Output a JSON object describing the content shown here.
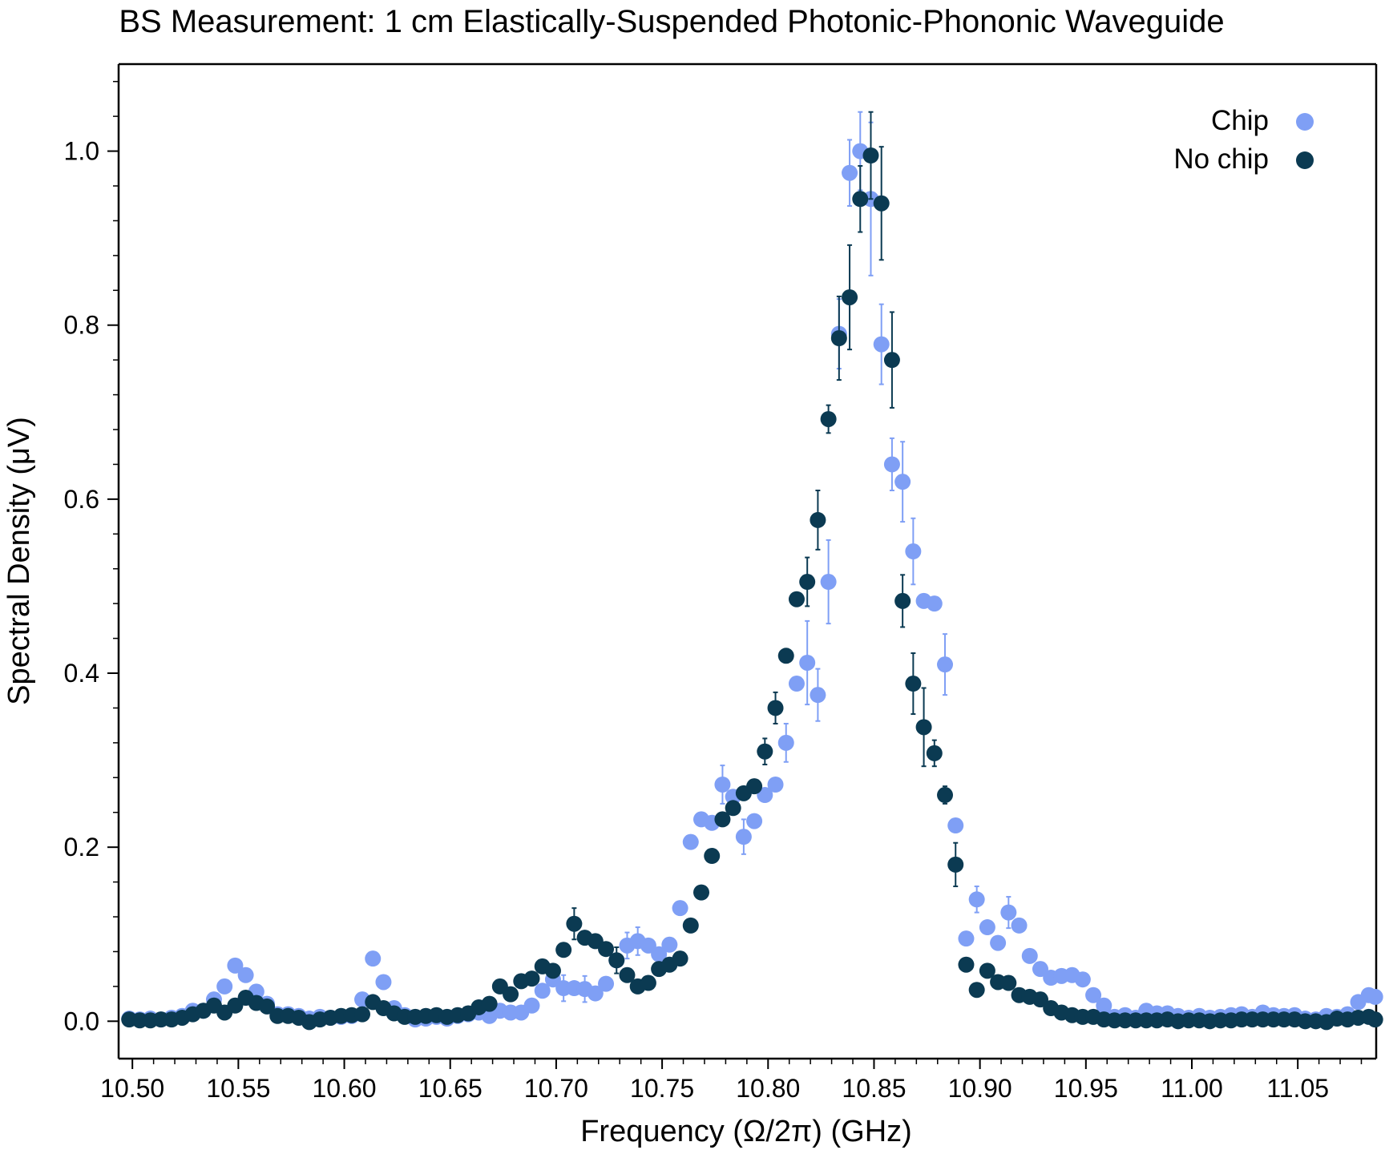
{
  "chart_data": {
    "type": "scatter",
    "title": "BS Measurement: 1 cm Elastically-Suspended Photonic-Phononic Waveguide",
    "xlabel": "Frequency (Ω/2π) (GHz)",
    "ylabel": "Spectral Density (μV)",
    "xlim": [
      10.4935,
      11.087
    ],
    "ylim": [
      -0.043,
      1.1
    ],
    "xticks": [
      10.5,
      10.55,
      10.6,
      10.65,
      10.7,
      10.75,
      10.8,
      10.85,
      10.9,
      10.95,
      11.0,
      11.05
    ],
    "xtick_labels": [
      "10.50",
      "10.55",
      "10.60",
      "10.65",
      "10.70",
      "10.75",
      "10.80",
      "10.85",
      "10.90",
      "10.95",
      "11.00",
      "11.05"
    ],
    "yticks": [
      0.0,
      0.2,
      0.4,
      0.6,
      0.8,
      1.0
    ],
    "ytick_labels": [
      "0.0",
      "0.2",
      "0.4",
      "0.6",
      "0.8",
      "1.0"
    ],
    "grid": false,
    "legend": "top-right",
    "series": [
      {
        "name": "Chip",
        "color": "#7f9ff5",
        "points": [
          [
            10.4985,
            0.003
          ],
          [
            10.5035,
            0.002
          ],
          [
            10.5085,
            0.003
          ],
          [
            10.5135,
            0.002
          ],
          [
            10.5185,
            0.004
          ],
          [
            10.5235,
            0.006
          ],
          [
            10.5285,
            0.012
          ],
          [
            10.5335,
            0.012
          ],
          [
            10.5385,
            0.025
          ],
          [
            10.5435,
            0.04
          ],
          [
            10.5485,
            0.064
          ],
          [
            10.5535,
            0.053
          ],
          [
            10.5585,
            0.034
          ],
          [
            10.5635,
            0.02
          ],
          [
            10.5685,
            0.008
          ],
          [
            10.5735,
            0.008
          ],
          [
            10.5785,
            0.006
          ],
          [
            10.5835,
            0.003
          ],
          [
            10.5885,
            0.005
          ],
          [
            10.5935,
            0.004
          ],
          [
            10.5985,
            0.005
          ],
          [
            10.6035,
            0.006
          ],
          [
            10.6085,
            0.025
          ],
          [
            10.6135,
            0.072
          ],
          [
            10.6185,
            0.045
          ],
          [
            10.6235,
            0.015
          ],
          [
            10.6285,
            0.007
          ],
          [
            10.6335,
            0.002
          ],
          [
            10.6385,
            0.003
          ],
          [
            10.6435,
            0.005
          ],
          [
            10.6485,
            0.003
          ],
          [
            10.6535,
            0.006
          ],
          [
            10.6585,
            0.008
          ],
          [
            10.6635,
            0.01
          ],
          [
            10.6685,
            0.006
          ],
          [
            10.6735,
            0.012
          ],
          [
            10.6785,
            0.01
          ],
          [
            10.6835,
            0.01
          ],
          [
            10.6885,
            0.018
          ],
          [
            10.6935,
            0.035
          ],
          [
            10.6985,
            0.048
          ],
          [
            10.7035,
            0.038
          ],
          [
            10.7085,
            0.038
          ],
          [
            10.7135,
            0.037
          ],
          [
            10.7185,
            0.032
          ],
          [
            10.7235,
            0.043
          ],
          [
            10.7285,
            0.07
          ],
          [
            10.7335,
            0.087
          ],
          [
            10.7385,
            0.092
          ],
          [
            10.7435,
            0.087
          ],
          [
            10.7485,
            0.077
          ],
          [
            10.7535,
            0.088
          ],
          [
            10.7585,
            0.13
          ],
          [
            10.7635,
            0.206
          ],
          [
            10.7685,
            0.232
          ],
          [
            10.7735,
            0.228
          ],
          [
            10.7785,
            0.272
          ],
          [
            10.7835,
            0.258
          ],
          [
            10.7885,
            0.212
          ],
          [
            10.7935,
            0.23
          ],
          [
            10.7985,
            0.26
          ],
          [
            10.8035,
            0.272
          ],
          [
            10.8085,
            0.32
          ],
          [
            10.8135,
            0.388
          ],
          [
            10.8185,
            0.412
          ],
          [
            10.8235,
            0.375
          ],
          [
            10.8285,
            0.505
          ],
          [
            10.8335,
            0.79
          ],
          [
            10.8385,
            0.975
          ],
          [
            10.8435,
            1.0
          ],
          [
            10.8485,
            0.945
          ],
          [
            10.8535,
            0.778
          ],
          [
            10.8585,
            0.64
          ],
          [
            10.8635,
            0.62
          ],
          [
            10.8685,
            0.54
          ],
          [
            10.8735,
            0.483
          ],
          [
            10.8785,
            0.48
          ],
          [
            10.8835,
            0.41
          ],
          [
            10.8885,
            0.225
          ],
          [
            10.8935,
            0.095
          ],
          [
            10.8985,
            0.14
          ],
          [
            10.9035,
            0.108
          ],
          [
            10.9085,
            0.09
          ],
          [
            10.9135,
            0.125
          ],
          [
            10.9185,
            0.11
          ],
          [
            10.9235,
            0.075
          ],
          [
            10.9285,
            0.06
          ],
          [
            10.9335,
            0.05
          ],
          [
            10.9385,
            0.052
          ],
          [
            10.9435,
            0.053
          ],
          [
            10.9485,
            0.048
          ],
          [
            10.9535,
            0.03
          ],
          [
            10.9585,
            0.018
          ],
          [
            10.9635,
            0.005
          ],
          [
            10.9685,
            0.007
          ],
          [
            10.9735,
            0.004
          ],
          [
            10.9785,
            0.012
          ],
          [
            10.9835,
            0.009
          ],
          [
            10.9885,
            0.009
          ],
          [
            10.9935,
            0.006
          ],
          [
            10.9985,
            0.004
          ],
          [
            11.0035,
            0.006
          ],
          [
            11.0085,
            0.004
          ],
          [
            11.0135,
            0.005
          ],
          [
            11.0185,
            0.007
          ],
          [
            11.0235,
            0.008
          ],
          [
            11.0285,
            0.005
          ],
          [
            11.0335,
            0.01
          ],
          [
            11.0385,
            0.007
          ],
          [
            11.0435,
            0.006
          ],
          [
            11.0485,
            0.007
          ],
          [
            11.0535,
            0.003
          ],
          [
            11.0585,
            0.002
          ],
          [
            11.0635,
            0.006
          ],
          [
            11.0685,
            0.005
          ],
          [
            11.0735,
            0.008
          ],
          [
            11.0785,
            0.022
          ],
          [
            11.0835,
            0.03
          ],
          [
            11.0865,
            0.028
          ]
        ],
        "errors": [
          [
            10.8185,
            0.048
          ],
          [
            10.8235,
            0.03
          ],
          [
            10.8285,
            0.048
          ],
          [
            10.8335,
            0.04
          ],
          [
            10.8385,
            0.038
          ],
          [
            10.8435,
            0.045
          ],
          [
            10.8485,
            0.088
          ],
          [
            10.8535,
            0.046
          ],
          [
            10.8585,
            0.03
          ],
          [
            10.8635,
            0.046
          ],
          [
            10.8685,
            0.038
          ],
          [
            10.8835,
            0.035
          ],
          [
            10.7785,
            0.022
          ],
          [
            10.7885,
            0.02
          ],
          [
            10.8085,
            0.022
          ],
          [
            10.7335,
            0.015
          ],
          [
            10.7385,
            0.016
          ],
          [
            10.7135,
            0.015
          ],
          [
            10.7035,
            0.015
          ],
          [
            10.9135,
            0.018
          ],
          [
            10.8985,
            0.015
          ]
        ]
      },
      {
        "name": "No chip",
        "color": "#0b3a52",
        "points": [
          [
            10.4985,
            0.002
          ],
          [
            10.5035,
            0.001
          ],
          [
            10.5085,
            0.001
          ],
          [
            10.5135,
            0.002
          ],
          [
            10.5185,
            0.002
          ],
          [
            10.5235,
            0.004
          ],
          [
            10.5285,
            0.008
          ],
          [
            10.5335,
            0.012
          ],
          [
            10.5385,
            0.018
          ],
          [
            10.5435,
            0.01
          ],
          [
            10.5485,
            0.018
          ],
          [
            10.5535,
            0.027
          ],
          [
            10.5585,
            0.021
          ],
          [
            10.5635,
            0.017
          ],
          [
            10.5685,
            0.006
          ],
          [
            10.5735,
            0.006
          ],
          [
            10.5785,
            0.004
          ],
          [
            10.5835,
            -0.001
          ],
          [
            10.5885,
            0.002
          ],
          [
            10.5935,
            0.004
          ],
          [
            10.5985,
            0.006
          ],
          [
            10.6035,
            0.007
          ],
          [
            10.6085,
            0.008
          ],
          [
            10.6135,
            0.022
          ],
          [
            10.6185,
            0.015
          ],
          [
            10.6235,
            0.009
          ],
          [
            10.6285,
            0.005
          ],
          [
            10.6335,
            0.005
          ],
          [
            10.6385,
            0.006
          ],
          [
            10.6435,
            0.007
          ],
          [
            10.6485,
            0.005
          ],
          [
            10.6535,
            0.007
          ],
          [
            10.6585,
            0.009
          ],
          [
            10.6635,
            0.016
          ],
          [
            10.6685,
            0.02
          ],
          [
            10.6735,
            0.04
          ],
          [
            10.6785,
            0.031
          ],
          [
            10.6835,
            0.046
          ],
          [
            10.6885,
            0.049
          ],
          [
            10.6935,
            0.063
          ],
          [
            10.6985,
            0.058
          ],
          [
            10.7035,
            0.082
          ],
          [
            10.7085,
            0.112
          ],
          [
            10.7135,
            0.096
          ],
          [
            10.7185,
            0.092
          ],
          [
            10.7235,
            0.083
          ],
          [
            10.7285,
            0.07
          ],
          [
            10.7335,
            0.053
          ],
          [
            10.7385,
            0.04
          ],
          [
            10.7435,
            0.044
          ],
          [
            10.7485,
            0.06
          ],
          [
            10.7535,
            0.065
          ],
          [
            10.7585,
            0.072
          ],
          [
            10.7635,
            0.11
          ],
          [
            10.7685,
            0.148
          ],
          [
            10.7735,
            0.19
          ],
          [
            10.7785,
            0.232
          ],
          [
            10.7835,
            0.245
          ],
          [
            10.7885,
            0.262
          ],
          [
            10.7935,
            0.27
          ],
          [
            10.7985,
            0.31
          ],
          [
            10.8035,
            0.36
          ],
          [
            10.8085,
            0.42
          ],
          [
            10.8135,
            0.485
          ],
          [
            10.8185,
            0.505
          ],
          [
            10.8235,
            0.576
          ],
          [
            10.8285,
            0.692
          ],
          [
            10.8335,
            0.785
          ],
          [
            10.8385,
            0.832
          ],
          [
            10.8435,
            0.945
          ],
          [
            10.8485,
            0.995
          ],
          [
            10.8535,
            0.94
          ],
          [
            10.8585,
            0.76
          ],
          [
            10.8635,
            0.483
          ],
          [
            10.8685,
            0.388
          ],
          [
            10.8735,
            0.338
          ],
          [
            10.8785,
            0.308
          ],
          [
            10.8835,
            0.26
          ],
          [
            10.8885,
            0.18
          ],
          [
            10.8935,
            0.065
          ],
          [
            10.8985,
            0.036
          ],
          [
            10.9035,
            0.058
          ],
          [
            10.9085,
            0.045
          ],
          [
            10.9135,
            0.044
          ],
          [
            10.9185,
            0.03
          ],
          [
            10.9235,
            0.028
          ],
          [
            10.9285,
            0.025
          ],
          [
            10.9335,
            0.015
          ],
          [
            10.9385,
            0.01
          ],
          [
            10.9435,
            0.007
          ],
          [
            10.9485,
            0.005
          ],
          [
            10.9535,
            0.005
          ],
          [
            10.9585,
            0.002
          ],
          [
            10.9635,
            0.001
          ],
          [
            10.9685,
            0.001
          ],
          [
            10.9735,
            0.001
          ],
          [
            10.9785,
            0.001
          ],
          [
            10.9835,
            0.001
          ],
          [
            10.9885,
            0.002
          ],
          [
            10.9935,
            0.0
          ],
          [
            10.9985,
            0.001
          ],
          [
            11.0035,
            0.001
          ],
          [
            11.0085,
            0.0
          ],
          [
            11.0135,
            0.001
          ],
          [
            11.0185,
            0.001
          ],
          [
            11.0235,
            0.002
          ],
          [
            11.0285,
            0.002
          ],
          [
            11.0335,
            0.002
          ],
          [
            11.0385,
            0.002
          ],
          [
            11.0435,
            0.002
          ],
          [
            11.0485,
            0.002
          ],
          [
            11.0535,
            0.0
          ],
          [
            11.0585,
            0.0
          ],
          [
            11.0635,
            -0.001
          ],
          [
            11.0685,
            0.003
          ],
          [
            11.0735,
            0.002
          ],
          [
            11.0785,
            0.004
          ],
          [
            11.0835,
            0.005
          ],
          [
            11.0865,
            0.002
          ]
        ],
        "errors": [
          [
            10.8085,
            0.008
          ],
          [
            10.8185,
            0.028
          ],
          [
            10.8235,
            0.034
          ],
          [
            10.8285,
            0.016
          ],
          [
            10.8335,
            0.048
          ],
          [
            10.8385,
            0.06
          ],
          [
            10.8435,
            0.038
          ],
          [
            10.8485,
            0.05
          ],
          [
            10.8535,
            0.065
          ],
          [
            10.8585,
            0.055
          ],
          [
            10.8635,
            0.03
          ],
          [
            10.8685,
            0.035
          ],
          [
            10.8735,
            0.045
          ],
          [
            10.8785,
            0.015
          ],
          [
            10.8835,
            0.01
          ],
          [
            10.8885,
            0.025
          ],
          [
            10.7985,
            0.015
          ],
          [
            10.8035,
            0.018
          ],
          [
            10.7085,
            0.018
          ],
          [
            10.7285,
            0.015
          ]
        ]
      }
    ]
  }
}
